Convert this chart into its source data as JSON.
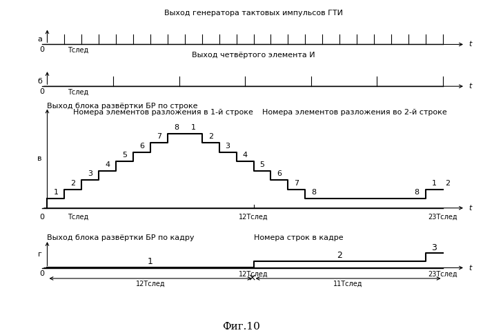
{
  "title": "Фиг.10",
  "panel_a_label": "а",
  "panel_b_label": "б",
  "panel_v_label": "в",
  "panel_g_label": "г",
  "panel_a_title": "Выход генератора тактовых импульсов ГТИ",
  "panel_b_title": "Выход четвёртого элемента И",
  "panel_v_title": "Выход блока развёртки БР по строке",
  "panel_g_title": "Выход блока развёртки БР по кадру",
  "annotation_v1": "Номера элементов разложения в 1-й строке",
  "annotation_v2": "Номера элементов разложения во 2-й строке",
  "annotation_g": "Номера строк в кадре",
  "xlabel_t": "t",
  "xlabel_0": "0",
  "tslед": "Тслед",
  "t12": "12Тслед",
  "t23": "23Тслед",
  "arrow_12": "12Тслед",
  "arrow_11": "11Тслед",
  "bg_color": "#ffffff",
  "line_color": "#000000",
  "num_clock_a": 23,
  "num_clock_b": 6,
  "staircase_v_steps": [
    1,
    2,
    3,
    4,
    5,
    6,
    7,
    8,
    8,
    7,
    6,
    5,
    4,
    3,
    2,
    1,
    1,
    1,
    1,
    1,
    1,
    1,
    2
  ],
  "staircase_v_labels_1": [
    "1",
    "2",
    "3",
    "4",
    "5",
    "6",
    "7",
    "8"
  ],
  "staircase_v_labels_2": [
    "1",
    "2",
    "3",
    "4",
    "5",
    "6",
    "7",
    "8"
  ],
  "staircase_v_tail_labels": {
    "21": "8",
    "22": "1",
    "23": "2"
  },
  "fontsize_small": 7,
  "fontsize_main": 8,
  "fontsize_label": 9,
  "fontsize_title": 10
}
